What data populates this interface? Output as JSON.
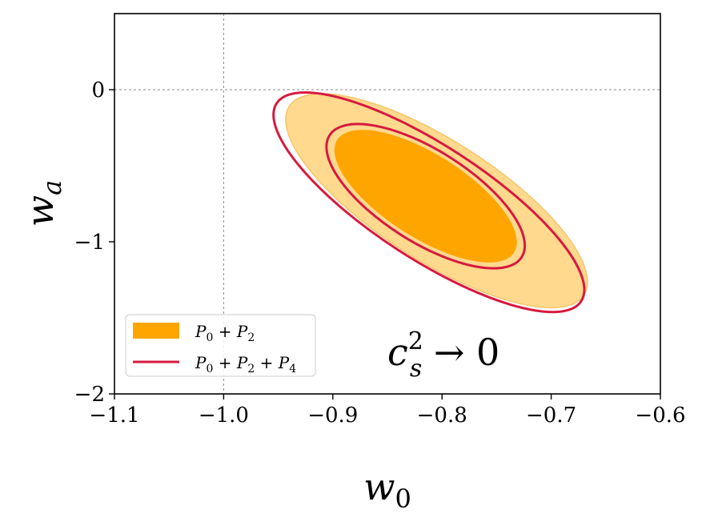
{
  "chart_data": {
    "type": "contour",
    "xlabel": "w",
    "xlabel_sub": "0",
    "ylabel": "w",
    "ylabel_sub": "a",
    "xlim": [
      -1.1,
      -0.6
    ],
    "ylim": [
      -2,
      0.5
    ],
    "xticks": [
      -1.1,
      -1.0,
      -0.9,
      -0.8,
      -0.7,
      -0.6
    ],
    "xtick_labels": [
      "−1.1",
      "−1.0",
      "−0.9",
      "−0.8",
      "−0.7",
      "−0.6"
    ],
    "yticks": [
      0,
      -1,
      -2
    ],
    "ytick_labels": [
      "0",
      "−1",
      "−2"
    ],
    "reference_lines": {
      "x": -1.0,
      "y": 0
    },
    "annotation": {
      "base": "c",
      "sup": "2",
      "sub": "s",
      "rest": " → 0"
    },
    "series": [
      {
        "name": "P0+P2",
        "legend": {
          "p1": "P",
          "s1": "0",
          "op1": " + ",
          "p2": "P",
          "s2": "2"
        },
        "style": "filled",
        "color_outer": "#ffd98e",
        "color_inner": "#ffa500",
        "contours": [
          {
            "level": "2sigma",
            "center": [
              -0.805,
              -0.73
            ],
            "corner_a": [
              -0.94,
              -0.12
            ],
            "corner_b": [
              -0.67,
              -1.36
            ],
            "half_width": 0.055
          },
          {
            "level": "1sigma",
            "center": [
              -0.815,
              -0.7
            ],
            "corner_a": [
              -0.895,
              -0.33
            ],
            "corner_b": [
              -0.733,
              -1.07
            ],
            "half_width": 0.038
          }
        ]
      },
      {
        "name": "P0+P2+P4",
        "legend": {
          "p1": "P",
          "s1": "0",
          "op1": " + ",
          "p2": "P",
          "s2": "2",
          "op2": " + ",
          "p3": "P",
          "s3": "4"
        },
        "style": "line",
        "color": "#d7193f",
        "contours": [
          {
            "level": "2sigma",
            "center": [
              -0.812,
              -0.74
            ],
            "corner_a": [
              -0.952,
              -0.08
            ],
            "corner_b": [
              -0.673,
              -1.38
            ],
            "half_width": 0.052
          },
          {
            "level": "1sigma",
            "center": [
              -0.815,
              -0.7
            ],
            "corner_a": [
              -0.903,
              -0.29
            ],
            "corner_b": [
              -0.727,
              -1.09
            ],
            "half_width": 0.042
          }
        ]
      }
    ]
  }
}
